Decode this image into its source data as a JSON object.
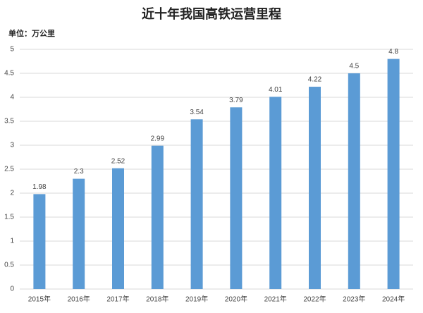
{
  "chart_data": {
    "type": "bar",
    "title": "近十年我国高铁运营里程",
    "subtitle": "单位：万公里",
    "categories": [
      "2015年",
      "2016年",
      "2017年",
      "2018年",
      "2019年",
      "2020年",
      "2021年",
      "2022年",
      "2023年",
      "2024年"
    ],
    "values": [
      1.98,
      2.3,
      2.52,
      2.99,
      3.54,
      3.79,
      4.01,
      4.22,
      4.5,
      4.8
    ],
    "color": "#5b9bd5",
    "ylim": [
      0,
      5
    ],
    "yticks": [
      0,
      0.5,
      1,
      1.5,
      2,
      2.5,
      3,
      3.5,
      4,
      4.5,
      5
    ],
    "grid": true
  }
}
